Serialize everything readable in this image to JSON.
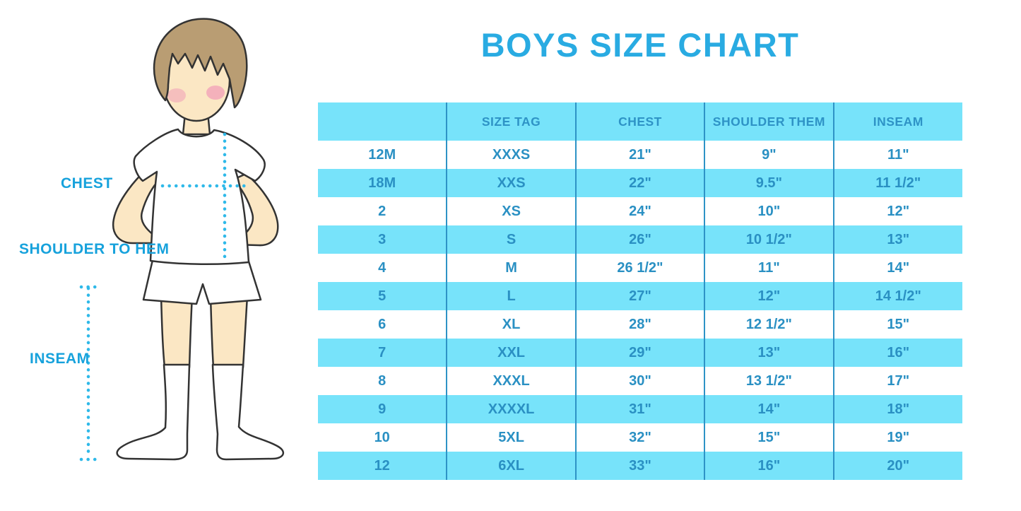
{
  "title": "BOYS SIZE CHART",
  "figure": {
    "chest_label": "CHEST",
    "shoulder_to_hem_label": "SHOULDER TO HEM",
    "inseam_label": "INSEAM"
  },
  "chart_data": {
    "type": "table",
    "title": "BOYS SIZE CHART",
    "headers": [
      "",
      "SIZE TAG",
      "CHEST",
      "SHOULDER THEM",
      "INSEAM"
    ],
    "rows": [
      [
        "12M",
        "XXXS",
        "21\"",
        "9\"",
        "11\""
      ],
      [
        "18M",
        "XXS",
        "22\"",
        "9.5\"",
        "11 1/2\""
      ],
      [
        "2",
        "XS",
        "24\"",
        "10\"",
        "12\""
      ],
      [
        "3",
        "S",
        "26\"",
        "10 1/2\"",
        "13\""
      ],
      [
        "4",
        "M",
        "26 1/2\"",
        "11\"",
        "14\""
      ],
      [
        "5",
        "L",
        "27\"",
        "12\"",
        "14 1/2\""
      ],
      [
        "6",
        "XL",
        "28\"",
        "12 1/2\"",
        "15\""
      ],
      [
        "7",
        "XXL",
        "29\"",
        "13\"",
        "16\""
      ],
      [
        "8",
        "XXXL",
        "30\"",
        "13 1/2\"",
        "17\""
      ],
      [
        "9",
        "XXXXL",
        "31\"",
        "14\"",
        "18\""
      ],
      [
        "10",
        "5XL",
        "32\"",
        "15\"",
        "19\""
      ],
      [
        "12",
        "6XL",
        "33\"",
        "16\"",
        "20\""
      ]
    ],
    "layout": {
      "header_background": "cyan band",
      "row_striping": "white / cyan alternating starting white",
      "grid": "vertical column separators only"
    }
  },
  "colors": {
    "title_blue": "#29ABE2",
    "band_cyan": "#77E3FA",
    "table_text_blue": "#2A90C3",
    "grid_line_blue": "#2E93C6",
    "label_blue": "#17A2DC",
    "dotted_line_cyan": "#2FB9E9",
    "hair_brown": "#B99D73",
    "skin_tone": "#FBE7C4",
    "blush_pink": "#F19FB8",
    "outline_dark": "#333333"
  }
}
